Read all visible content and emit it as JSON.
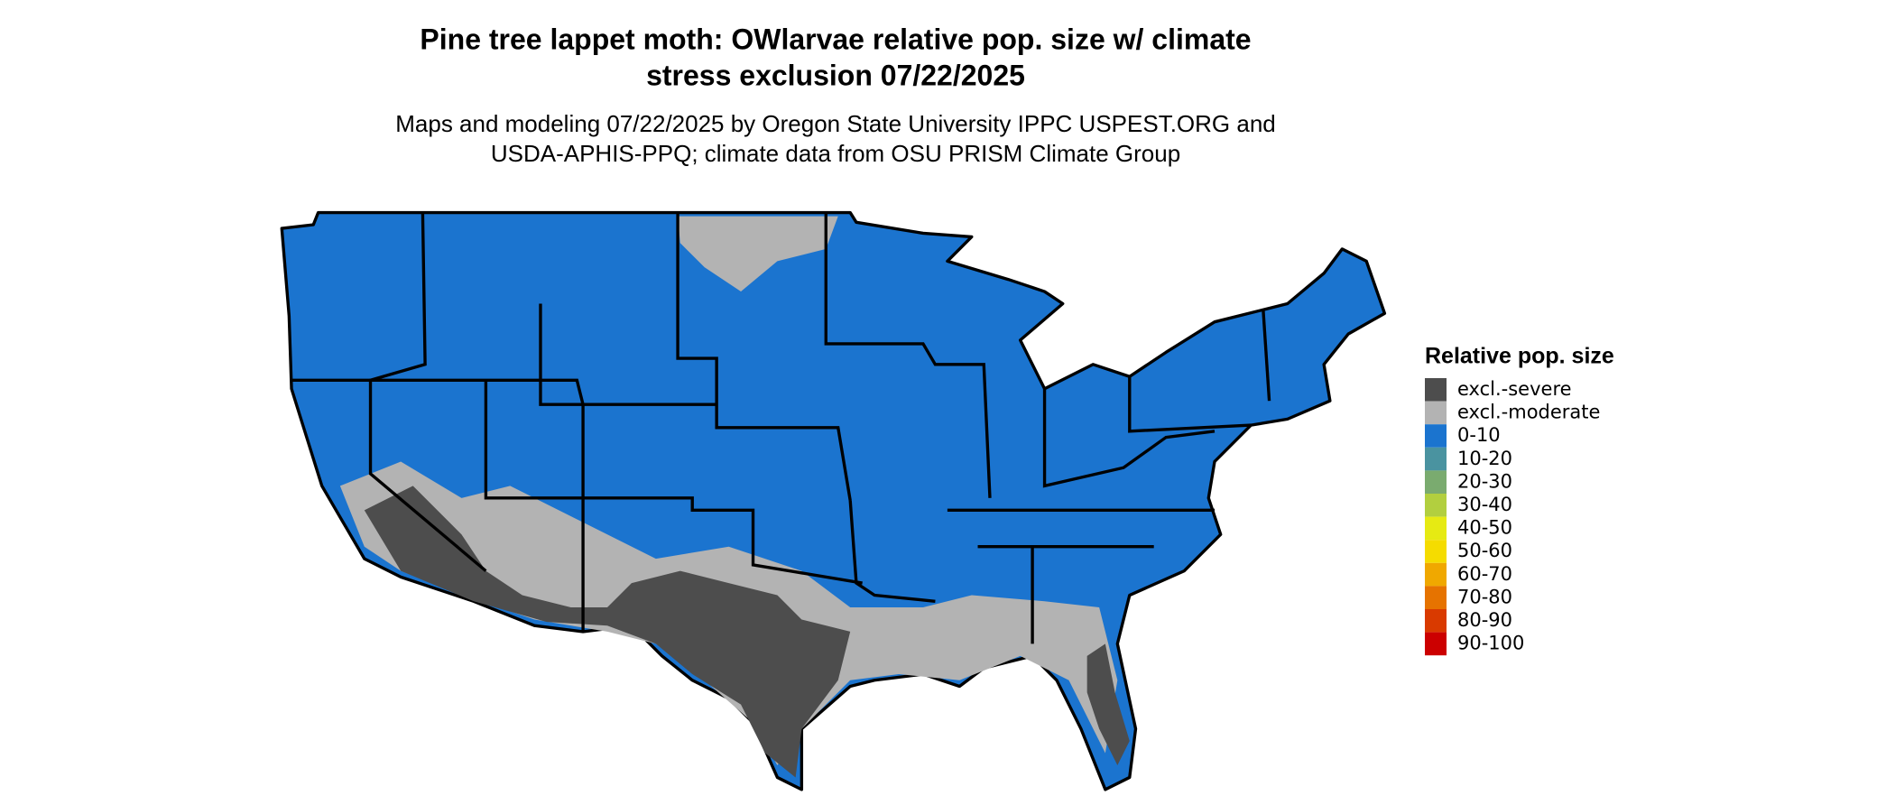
{
  "header": {
    "title_line1": "Pine tree lappet moth: OWlarvae relative pop. size w/ climate",
    "title_line2": "stress exclusion 07/22/2025",
    "subtitle_line1": "Maps and modeling 07/22/2025 by Oregon State University IPPC USPEST.ORG and",
    "subtitle_line2": "USDA-APHIS-PPQ; climate data from OSU PRISM Climate Group"
  },
  "legend": {
    "title": "Relative pop. size",
    "items": [
      {
        "label": "excl.-severe",
        "color": "#4d4d4d"
      },
      {
        "label": "excl.-moderate",
        "color": "#b3b3b3"
      },
      {
        "label": "0-10",
        "color": "#1b74cf"
      },
      {
        "label": "10-20",
        "color": "#4a93a0"
      },
      {
        "label": "20-30",
        "color": "#7aab6f"
      },
      {
        "label": "30-40",
        "color": "#b2cf3f"
      },
      {
        "label": "40-50",
        "color": "#e6ea13"
      },
      {
        "label": "50-60",
        "color": "#f5dc00"
      },
      {
        "label": "60-70",
        "color": "#f0a800"
      },
      {
        "label": "70-80",
        "color": "#e67300"
      },
      {
        "label": "80-90",
        "color": "#d93a00"
      },
      {
        "label": "90-100",
        "color": "#cc0000"
      }
    ]
  }
}
